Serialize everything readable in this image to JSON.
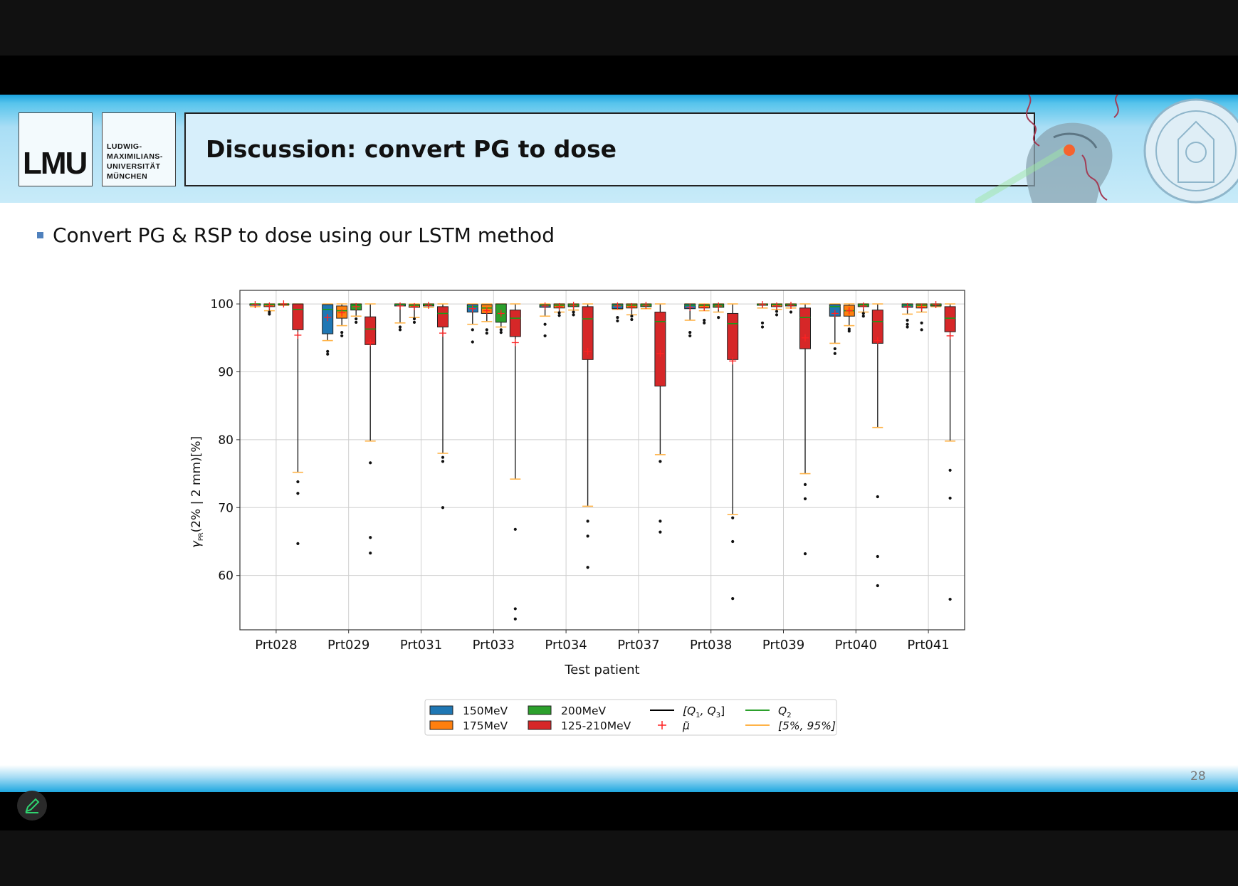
{
  "slide": {
    "title": "Discussion: convert PG to dose",
    "bullet": "Convert PG & RSP to dose using our LSTM method",
    "page_number": "28",
    "logo_text": "LMU",
    "logo_name_lines": [
      "LUDWIG-",
      "MAXIMILIANS-",
      "UNIVERSITÄT",
      "MÜNCHEN"
    ]
  },
  "chart_data": {
    "type": "box",
    "xlabel": "Test patient",
    "ylabel_main": "γ",
    "ylabel_sub": "PR",
    "ylabel_rest": "(2% | 2 mm)[%]",
    "ylim": [
      52,
      102
    ],
    "yticks": [
      60,
      70,
      80,
      90,
      100
    ],
    "grid": true,
    "categories": [
      "Prt028",
      "Prt029",
      "Prt031",
      "Prt033",
      "Prt034",
      "Prt037",
      "Prt038",
      "Prt039",
      "Prt040",
      "Prt041"
    ],
    "series": [
      {
        "name": "150MeV",
        "color": "#1f77b4",
        "boxes": [
          {
            "q1": 99.8,
            "q2": 100,
            "q3": 100,
            "p5": 99.6,
            "p95": 100,
            "mean": 99.9,
            "out": []
          },
          {
            "q1": 95.6,
            "q2": 99.2,
            "q3": 99.9,
            "p5": 94.6,
            "p95": 100,
            "mean": 98.0,
            "out": [
              93.0,
              92.6
            ]
          },
          {
            "q1": 99.7,
            "q2": 99.9,
            "q3": 100,
            "p5": 97.2,
            "p95": 100,
            "mean": 99.7,
            "out": [
              96.6,
              96.2
            ]
          },
          {
            "q1": 98.8,
            "q2": 99.6,
            "q3": 99.9,
            "p5": 97.0,
            "p95": 100,
            "mean": 99.3,
            "out": [
              96.2,
              94.4
            ]
          },
          {
            "q1": 99.5,
            "q2": 99.8,
            "q3": 99.9,
            "p5": 98.2,
            "p95": 100,
            "mean": 99.7,
            "out": [
              97.0,
              95.3
            ]
          },
          {
            "q1": 99.3,
            "q2": 99.8,
            "q3": 100,
            "p5": 99.2,
            "p95": 100,
            "mean": 99.7,
            "out": [
              98.0,
              97.5
            ]
          },
          {
            "q1": 99.3,
            "q2": 99.8,
            "q3": 100,
            "p5": 97.6,
            "p95": 100,
            "mean": 99.5,
            "out": [
              95.8,
              95.3
            ]
          },
          {
            "q1": 99.8,
            "q2": 99.9,
            "q3": 100,
            "p5": 99.4,
            "p95": 100,
            "mean": 99.9,
            "out": [
              97.2,
              96.6
            ]
          },
          {
            "q1": 98.2,
            "q2": 99.6,
            "q3": 99.9,
            "p5": 94.2,
            "p95": 100,
            "mean": 98.6,
            "out": [
              93.4,
              92.7
            ]
          },
          {
            "q1": 99.5,
            "q2": 99.8,
            "q3": 100,
            "p5": 98.5,
            "p95": 100,
            "mean": 99.6,
            "out": [
              97.6,
              97.0,
              96.6
            ]
          }
        ]
      },
      {
        "name": "175MeV",
        "color": "#ff7f0e",
        "boxes": [
          {
            "q1": 99.6,
            "q2": 99.9,
            "q3": 100,
            "p5": 99.0,
            "p95": 100,
            "mean": 99.7,
            "out": [
              98.8,
              98.5
            ]
          },
          {
            "q1": 97.9,
            "q2": 99.0,
            "q3": 99.7,
            "p5": 96.8,
            "p95": 100,
            "mean": 98.7,
            "out": [
              95.8,
              95.3
            ]
          },
          {
            "q1": 99.5,
            "q2": 99.8,
            "q3": 99.9,
            "p5": 98.0,
            "p95": 100,
            "mean": 99.6,
            "out": [
              97.8,
              97.3
            ]
          },
          {
            "q1": 98.6,
            "q2": 99.4,
            "q3": 99.9,
            "p5": 97.4,
            "p95": 100,
            "mean": 99.0,
            "out": [
              96.2,
              95.7
            ]
          },
          {
            "q1": 99.4,
            "q2": 99.8,
            "q3": 100,
            "p5": 98.8,
            "p95": 100,
            "mean": 99.6,
            "out": [
              98.7,
              98.3
            ]
          },
          {
            "q1": 99.4,
            "q2": 99.8,
            "q3": 100,
            "p5": 98.4,
            "p95": 100,
            "mean": 99.6,
            "out": [
              98.2,
              97.7
            ]
          },
          {
            "q1": 99.4,
            "q2": 99.8,
            "q3": 99.9,
            "p5": 99.0,
            "p95": 100,
            "mean": 99.5,
            "out": [
              97.6,
              97.2
            ]
          },
          {
            "q1": 99.6,
            "q2": 99.9,
            "q3": 100,
            "p5": 99.2,
            "p95": 100,
            "mean": 99.7,
            "out": [
              98.9,
              98.4
            ]
          },
          {
            "q1": 98.2,
            "q2": 99.0,
            "q3": 99.8,
            "p5": 96.8,
            "p95": 100,
            "mean": 99.0,
            "out": [
              96.3,
              96.0
            ]
          },
          {
            "q1": 99.4,
            "q2": 99.8,
            "q3": 100,
            "p5": 98.8,
            "p95": 100,
            "mean": 99.5,
            "out": [
              97.2,
              96.2
            ]
          }
        ]
      },
      {
        "name": "200MeV",
        "color": "#2ca02c",
        "boxes": [
          {
            "q1": 99.9,
            "q2": 100,
            "q3": 100,
            "p5": 99.8,
            "p95": 100,
            "mean": 100,
            "out": []
          },
          {
            "q1": 99.1,
            "q2": 99.8,
            "q3": 100,
            "p5": 98.2,
            "p95": 100,
            "mean": 99.6,
            "out": [
              97.8,
              97.3
            ]
          },
          {
            "q1": 99.7,
            "q2": 99.9,
            "q3": 100,
            "p5": 99.5,
            "p95": 100,
            "mean": 99.8,
            "out": []
          },
          {
            "q1": 97.3,
            "q2": 98.6,
            "q3": 100,
            "p5": 96.6,
            "p95": 100,
            "mean": 98.6,
            "out": [
              96.2,
              95.8
            ]
          },
          {
            "q1": 99.6,
            "q2": 99.9,
            "q3": 100,
            "p5": 99.1,
            "p95": 100,
            "mean": 99.8,
            "out": [
              98.8,
              98.4
            ]
          },
          {
            "q1": 99.6,
            "q2": 99.9,
            "q3": 100,
            "p5": 99.3,
            "p95": 100,
            "mean": 99.8,
            "out": []
          },
          {
            "q1": 99.5,
            "q2": 99.8,
            "q3": 100,
            "p5": 98.8,
            "p95": 100,
            "mean": 99.7,
            "out": [
              98.0
            ]
          },
          {
            "q1": 99.7,
            "q2": 99.9,
            "q3": 100,
            "p5": 99.4,
            "p95": 100,
            "mean": 99.8,
            "out": [
              98.8
            ]
          },
          {
            "q1": 99.6,
            "q2": 99.9,
            "q3": 100,
            "p5": 98.8,
            "p95": 100,
            "mean": 99.7,
            "out": [
              98.6,
              98.2
            ]
          },
          {
            "q1": 99.7,
            "q2": 99.9,
            "q3": 100,
            "p5": 99.6,
            "p95": 100,
            "mean": 99.9,
            "out": []
          }
        ]
      },
      {
        "name": "125-210MeV",
        "color": "#d62728",
        "boxes": [
          {
            "q1": 96.2,
            "q2": 99.2,
            "q3": 100,
            "p5": 75.2,
            "p95": 100,
            "mean": 95.4,
            "out": [
              73.8,
              72.1,
              64.7
            ]
          },
          {
            "q1": 94.0,
            "q2": 96.3,
            "q3": 98.1,
            "p5": 79.8,
            "p95": 100,
            "mean": 94.3,
            "out": [
              76.6,
              65.6,
              63.3
            ]
          },
          {
            "q1": 96.6,
            "q2": 98.6,
            "q3": 99.6,
            "p5": 78.0,
            "p95": 100,
            "mean": 95.7,
            "out": [
              77.4,
              76.8,
              70.0
            ]
          },
          {
            "q1": 95.2,
            "q2": 97.9,
            "q3": 99.1,
            "p5": 74.2,
            "p95": 100,
            "mean": 94.3,
            "out": [
              66.8,
              55.1,
              53.6
            ]
          },
          {
            "q1": 91.8,
            "q2": 97.8,
            "q3": 99.6,
            "p5": 70.2,
            "p95": 100,
            "mean": 93.0,
            "out": [
              68.0,
              65.8,
              61.2
            ]
          },
          {
            "q1": 87.9,
            "q2": 97.4,
            "q3": 98.8,
            "p5": 77.8,
            "p95": 100,
            "mean": 92.7,
            "out": [
              76.8,
              68.0,
              66.4
            ]
          },
          {
            "q1": 91.8,
            "q2": 97.1,
            "q3": 98.6,
            "p5": 69.0,
            "p95": 100,
            "mean": 91.6,
            "out": [
              68.5,
              65.0,
              56.6
            ]
          },
          {
            "q1": 93.4,
            "q2": 98.0,
            "q3": 99.4,
            "p5": 75.0,
            "p95": 100,
            "mean": 95.0,
            "out": [
              73.4,
              71.3,
              63.2
            ]
          },
          {
            "q1": 94.2,
            "q2": 97.4,
            "q3": 99.1,
            "p5": 81.8,
            "p95": 100,
            "mean": 94.6,
            "out": [
              71.6,
              62.8,
              58.5
            ]
          },
          {
            "q1": 95.9,
            "q2": 97.9,
            "q3": 99.6,
            "p5": 79.8,
            "p95": 100,
            "mean": 95.3,
            "out": [
              75.5,
              71.4,
              56.5
            ]
          }
        ]
      }
    ],
    "legend": {
      "placement": "bottom-center",
      "entries": [
        {
          "label": "150MeV",
          "kind": "box",
          "color": "#1f77b4"
        },
        {
          "label": "175MeV",
          "kind": "box",
          "color": "#ff7f0e"
        },
        {
          "label": "200MeV",
          "kind": "box",
          "color": "#2ca02c"
        },
        {
          "label": "125-210MeV",
          "kind": "box",
          "color": "#d62728"
        },
        {
          "label_main": "[Q",
          "label_s1": "1",
          "label_mid": ", Q",
          "label_s2": "3",
          "label_end": "]",
          "kind": "line",
          "color": "#000000"
        },
        {
          "label_main": "μ̃",
          "kind": "plus",
          "color": "#ff2222"
        },
        {
          "label_main": "Q",
          "label_s1": "2",
          "kind": "line",
          "color": "#2ca02c"
        },
        {
          "label_main": "[5%, 95%]",
          "kind": "line",
          "color": "#ffb347"
        }
      ]
    }
  }
}
